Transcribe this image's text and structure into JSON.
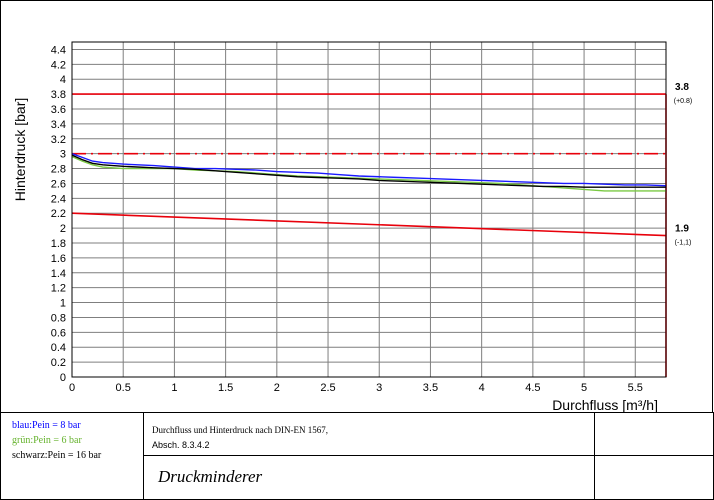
{
  "chart_data": {
    "type": "line",
    "title": "",
    "xlabel": "Durchfluss [m³/h]",
    "ylabel": "Hinterdruck [bar]",
    "xlim": [
      0,
      5.8
    ],
    "ylim": [
      0,
      4.5
    ],
    "xticks": [
      "0",
      "0.5",
      "1",
      "1.5",
      "2",
      "2.5",
      "3",
      "3.5",
      "4",
      "4.5",
      "5",
      "5.5"
    ],
    "yticks": [
      "0",
      "0.2",
      "0.4",
      "0.6",
      "0.8",
      "1",
      "1.2",
      "1.4",
      "1.6",
      "1.8",
      "2",
      "2.2",
      "2.4",
      "2.6",
      "2.8",
      "3",
      "3.2",
      "3.4",
      "3.6",
      "3.8",
      "4",
      "4.2",
      "4.4"
    ],
    "grid": true,
    "series": [
      {
        "name": "blau:Pein = 8 bar",
        "color": "#1a1aff",
        "x": [
          0,
          0.1,
          0.2,
          0.3,
          0.5,
          0.8,
          1.0,
          1.2,
          1.4,
          1.6,
          1.8,
          2.0,
          2.2,
          2.4,
          2.6,
          2.8,
          3.0,
          3.2,
          3.4,
          3.6,
          3.8,
          4.0,
          4.2,
          4.4,
          4.6,
          4.8,
          5.0,
          5.2,
          5.4,
          5.6,
          5.8
        ],
        "y": [
          3.0,
          2.95,
          2.9,
          2.88,
          2.86,
          2.84,
          2.82,
          2.8,
          2.8,
          2.79,
          2.78,
          2.76,
          2.75,
          2.74,
          2.72,
          2.7,
          2.69,
          2.68,
          2.67,
          2.66,
          2.65,
          2.64,
          2.63,
          2.62,
          2.61,
          2.6,
          2.6,
          2.59,
          2.58,
          2.58,
          2.57
        ]
      },
      {
        "name": "grün:Pein = 6 bar",
        "color": "#7ac943",
        "x": [
          0,
          0.1,
          0.2,
          0.3,
          0.5,
          0.8,
          1.0,
          1.2,
          1.4,
          1.6,
          1.8,
          2.0,
          2.2,
          2.4,
          2.6,
          2.8,
          3.0,
          3.2,
          3.4,
          3.6,
          3.8,
          4.0,
          4.2,
          4.4,
          4.6,
          4.8,
          5.0,
          5.2,
          5.4,
          5.6,
          5.8
        ],
        "y": [
          2.96,
          2.9,
          2.85,
          2.82,
          2.8,
          2.8,
          2.8,
          2.78,
          2.77,
          2.76,
          2.74,
          2.72,
          2.7,
          2.69,
          2.68,
          2.67,
          2.66,
          2.65,
          2.64,
          2.63,
          2.62,
          2.61,
          2.6,
          2.58,
          2.56,
          2.54,
          2.52,
          2.5,
          2.5,
          2.5,
          2.5
        ]
      },
      {
        "name": "schwarz:Pein = 16 bar",
        "color": "#000000",
        "x": [
          0,
          0.1,
          0.2,
          0.3,
          0.5,
          0.8,
          1.0,
          1.2,
          1.4,
          1.6,
          1.8,
          2.0,
          2.2,
          2.4,
          2.6,
          2.8,
          3.0,
          3.2,
          3.4,
          3.6,
          3.8,
          4.0,
          4.2,
          4.4,
          4.6,
          4.8,
          5.0,
          5.2,
          5.4,
          5.6,
          5.8
        ],
        "y": [
          2.98,
          2.92,
          2.87,
          2.85,
          2.83,
          2.81,
          2.8,
          2.79,
          2.77,
          2.75,
          2.73,
          2.71,
          2.69,
          2.68,
          2.67,
          2.66,
          2.64,
          2.63,
          2.62,
          2.61,
          2.6,
          2.59,
          2.58,
          2.57,
          2.56,
          2.56,
          2.55,
          2.55,
          2.55,
          2.55,
          2.55
        ]
      }
    ],
    "reference_lines": [
      {
        "kind": "upper_limit",
        "color": "#e8000b",
        "x": [
          0,
          5.8
        ],
        "y": [
          3.8,
          3.8
        ],
        "dash": false
      },
      {
        "kind": "nominal",
        "color": "#e8000b",
        "x": [
          0,
          5.8
        ],
        "y": [
          3.0,
          3.0
        ],
        "dash": true
      },
      {
        "kind": "lower_limit",
        "color": "#e8000b",
        "x": [
          0,
          5.8
        ],
        "y": [
          2.2,
          1.9
        ],
        "dash": false
      }
    ],
    "annotations": [
      {
        "label": "3.8",
        "sublabel": "(+0.8)"
      },
      {
        "label": "1.9",
        "sublabel": "(-1,1)"
      }
    ]
  },
  "legend": {
    "blue": "blau:Pein = 8 bar",
    "green": "grün:Pein = 6 bar",
    "black": "schwarz:Pein = 16 bar",
    "blue_color": "#0000ff",
    "green_color": "#66b32e",
    "black_color": "#000000"
  },
  "description": {
    "line1": "Durchfluss und Hinterdruck nach DIN-EN 1567,",
    "line2": "Absch. 8.3.4.2"
  },
  "drawing_title": "Druckminderer"
}
